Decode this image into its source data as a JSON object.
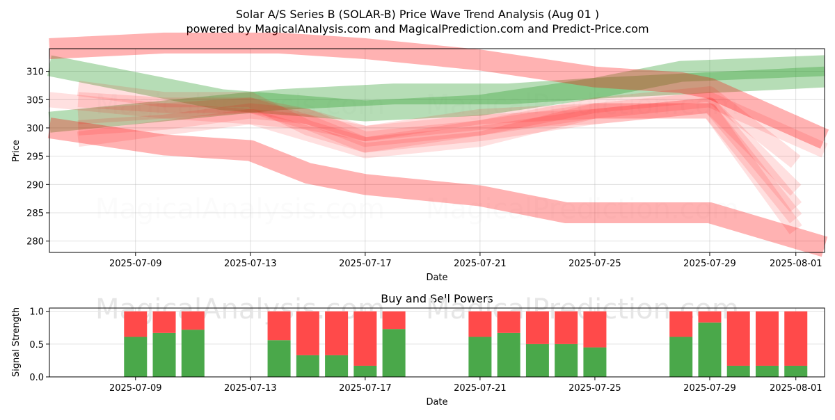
{
  "title": "Solar A/S Series B (SOLAR-B) Price Wave Trend Analysis (Aug 01 )",
  "subtitle": "powered by MagicalAnalysis.com and MagicalPrediction.com and Predict-Price.com",
  "watermarks": [
    "MagicalAnalysis.com",
    "MagicalPrediction.com"
  ],
  "colors": {
    "up": "#2e9e2e",
    "down": "#ff0000",
    "buy": "#4aa84a",
    "sell": "#ff4a4a"
  },
  "chart_data": [
    {
      "type": "area",
      "title": "",
      "xlabel": "Date",
      "ylabel": "Price",
      "xlim": [
        "2025-07-06",
        "2025-08-02"
      ],
      "ylim": [
        278,
        314
      ],
      "grid": true,
      "x_ticks": [
        "2025-07-09",
        "2025-07-13",
        "2025-07-17",
        "2025-07-21",
        "2025-07-25",
        "2025-07-29",
        "2025-08-01"
      ],
      "y_ticks": [
        280,
        285,
        290,
        295,
        300,
        305,
        310
      ],
      "bands": [
        {
          "color": "green",
          "x": [
            "2025-07-06",
            "2025-07-10",
            "2025-07-14",
            "2025-07-18",
            "2025-07-22",
            "2025-07-25",
            "2025-07-29",
            "2025-08-02"
          ],
          "y": [
            301,
            303,
            305,
            306,
            306,
            307,
            308,
            309
          ]
        },
        {
          "color": "green",
          "x": [
            "2025-07-06",
            "2025-07-12",
            "2025-07-17",
            "2025-07-21",
            "2025-07-25",
            "2025-07-28",
            "2025-08-02"
          ],
          "y": [
            311,
            305,
            303,
            304,
            307,
            310,
            311
          ]
        },
        {
          "color": "red",
          "x": [
            "2025-07-06",
            "2025-07-10",
            "2025-07-13",
            "2025-07-14",
            "2025-07-17",
            "2025-07-21",
            "2025-07-25",
            "2025-07-28",
            "2025-07-29",
            "2025-08-02"
          ],
          "y": [
            314,
            315,
            315,
            315,
            314,
            312,
            309,
            308,
            307,
            298
          ]
        },
        {
          "color": "red",
          "x": [
            "2025-07-06",
            "2025-07-10",
            "2025-07-13",
            "2025-07-15",
            "2025-07-17",
            "2025-07-21",
            "2025-07-24",
            "2025-07-29",
            "2025-08-02"
          ],
          "y": [
            300,
            297,
            296,
            292,
            290,
            288,
            285,
            285,
            279
          ]
        },
        {
          "color": "red",
          "x": [
            "2025-07-06",
            "2025-07-10",
            "2025-07-13",
            "2025-07-15",
            "2025-07-17",
            "2025-07-21",
            "2025-07-25",
            "2025-07-29",
            "2025-08-02"
          ],
          "y": [
            305,
            303,
            302,
            299,
            296,
            298,
            303,
            305,
            296
          ]
        },
        {
          "color": "red",
          "x": [
            "2025-07-07",
            "2025-07-10",
            "2025-07-13",
            "2025-07-15",
            "2025-07-17",
            "2025-07-21",
            "2025-07-25",
            "2025-07-29",
            "2025-08-01"
          ],
          "y": [
            307,
            305,
            305,
            300,
            297,
            300,
            304,
            306,
            294
          ]
        },
        {
          "color": "red",
          "x": [
            "2025-07-07",
            "2025-07-10",
            "2025-07-13",
            "2025-07-15",
            "2025-07-17",
            "2025-07-21",
            "2025-07-25",
            "2025-07-29",
            "2025-08-01"
          ],
          "y": [
            305,
            304,
            304,
            301,
            299,
            301,
            302,
            304,
            289
          ]
        },
        {
          "color": "red",
          "x": [
            "2025-07-07",
            "2025-07-10",
            "2025-07-13",
            "2025-07-15",
            "2025-07-17",
            "2025-07-21",
            "2025-07-25",
            "2025-07-29",
            "2025-08-01"
          ],
          "y": [
            302,
            303,
            304,
            302,
            299,
            302,
            303,
            303,
            284
          ]
        },
        {
          "color": "red",
          "x": [
            "2025-07-07",
            "2025-07-10",
            "2025-07-13",
            "2025-07-15",
            "2025-07-17",
            "2025-07-21",
            "2025-07-25",
            "2025-07-29",
            "2025-08-01"
          ],
          "y": [
            300,
            301,
            303,
            302,
            298,
            300,
            303,
            303,
            282
          ]
        },
        {
          "color": "red",
          "x": [
            "2025-07-07",
            "2025-07-10",
            "2025-07-13",
            "2025-07-15",
            "2025-07-17",
            "2025-07-21",
            "2025-07-25",
            "2025-07-29",
            "2025-08-01"
          ],
          "y": [
            298,
            300,
            302,
            301,
            297,
            299,
            302,
            304,
            286
          ]
        }
      ]
    },
    {
      "type": "bar",
      "title": "Buy and Sell Powers",
      "xlabel": "Date",
      "ylabel": "Signal Strength",
      "xlim": [
        "2025-07-06",
        "2025-08-02"
      ],
      "ylim": [
        0,
        1.05
      ],
      "y_ticks": [
        0.0,
        0.5,
        1.0
      ],
      "y_tick_labels": [
        "0.0",
        "0.5",
        "1.0"
      ],
      "x_ticks": [
        "2025-07-09",
        "2025-07-13",
        "2025-07-17",
        "2025-07-21",
        "2025-07-25",
        "2025-07-29",
        "2025-08-01"
      ],
      "categories": [
        "2025-07-09",
        "2025-07-10",
        "2025-07-11",
        "2025-07-14",
        "2025-07-15",
        "2025-07-16",
        "2025-07-17",
        "2025-07-18",
        "2025-07-21",
        "2025-07-22",
        "2025-07-23",
        "2025-07-24",
        "2025-07-25",
        "2025-07-28",
        "2025-07-29",
        "2025-07-30",
        "2025-07-31",
        "2025-08-01"
      ],
      "series": [
        {
          "values": [
            0.61,
            0.67,
            0.72,
            0.56,
            0.33,
            0.33,
            0.17,
            0.73,
            0.61,
            0.67,
            0.5,
            0.5,
            0.45,
            0.61,
            0.83,
            0.17,
            0.17,
            0.17
          ]
        },
        {
          "values": [
            0.39,
            0.33,
            0.28,
            0.44,
            0.67,
            0.67,
            0.83,
            0.27,
            0.39,
            0.33,
            0.5,
            0.5,
            0.55,
            0.39,
            0.17,
            0.83,
            0.83,
            0.83
          ]
        }
      ]
    }
  ]
}
